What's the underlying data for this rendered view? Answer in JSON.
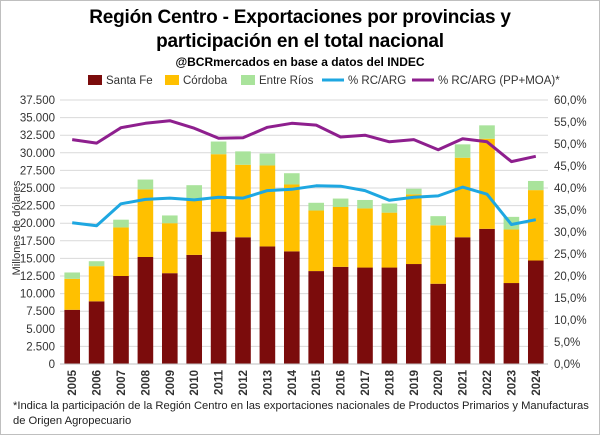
{
  "chart_data": {
    "type": "bar",
    "title_line1": "Región Centro - Exportaciones por provincias y",
    "title_line2": "participación en el total nacional",
    "subtitle": "@BCRmercados en base a datos del INDEC",
    "ylabel": "Millones de dólares",
    "categories": [
      "2005",
      "2006",
      "2007",
      "2008",
      "2009",
      "2010",
      "2011",
      "2012",
      "2013",
      "2014",
      "2015",
      "2016",
      "2017",
      "2018",
      "2019",
      "2020",
      "2021",
      "2022",
      "2023",
      "2024"
    ],
    "series": [
      {
        "name": "Santa Fe",
        "kind": "bar",
        "color": "#7b0c0c",
        "values": [
          7700,
          8900,
          12500,
          15200,
          12900,
          15500,
          18800,
          18000,
          16700,
          16000,
          13200,
          13800,
          13700,
          13700,
          14200,
          11400,
          18000,
          19200,
          11500,
          14700
        ]
      },
      {
        "name": "Córdoba",
        "kind": "bar",
        "color": "#ffc000",
        "values": [
          4400,
          5000,
          6900,
          9600,
          7100,
          7900,
          11000,
          10300,
          11500,
          9500,
          8600,
          8500,
          8400,
          7800,
          9900,
          8300,
          11300,
          12800,
          7600,
          10000
        ]
      },
      {
        "name": "Entre Ríos",
        "kind": "bar",
        "color": "#a9e39b",
        "values": [
          900,
          700,
          1100,
          1400,
          1100,
          2000,
          1800,
          1900,
          1700,
          1600,
          1100,
          1200,
          1200,
          1300,
          800,
          1300,
          1900,
          1900,
          1800,
          1300
        ]
      },
      {
        "name": "% RC/ARG",
        "kind": "line",
        "axis": "right",
        "color": "#1ea7e1",
        "values": [
          0.321,
          0.314,
          0.364,
          0.374,
          0.377,
          0.373,
          0.379,
          0.377,
          0.394,
          0.397,
          0.405,
          0.404,
          0.394,
          0.372,
          0.379,
          0.382,
          0.402,
          0.386,
          0.317,
          0.328
        ]
      },
      {
        "name": "% RC/ARG (PP+MOA)*",
        "kind": "line",
        "axis": "right",
        "color": "#8e1f8e",
        "values": [
          0.51,
          0.502,
          0.537,
          0.547,
          0.553,
          0.536,
          0.513,
          0.514,
          0.538,
          0.547,
          0.543,
          0.516,
          0.52,
          0.505,
          0.51,
          0.487,
          0.512,
          0.505,
          0.46,
          0.472
        ]
      }
    ],
    "y_left": {
      "min": 0,
      "max": 37500,
      "step": 2500,
      "ticks": [
        "0",
        "2.500",
        "5.000",
        "7.500",
        "10.000",
        "12.500",
        "15.000",
        "17.500",
        "20.000",
        "22.500",
        "25.000",
        "27.500",
        "30.000",
        "32.500",
        "35.000",
        "37.500"
      ]
    },
    "y_right": {
      "min": 0,
      "max": 0.6,
      "step": 0.05,
      "ticks": [
        "0,0%",
        "5,0%",
        "10,0%",
        "15,0%",
        "20,0%",
        "25,0%",
        "30,0%",
        "35,0%",
        "40,0%",
        "45,0%",
        "50,0%",
        "55,0%",
        "60,0%"
      ]
    },
    "grid": true,
    "legend_position": "top",
    "footnote": "*Indica la participación de la Región Centro en las exportaciones nacionales de Productos Primarios y Manufacturas de Origen Agropecuario"
  }
}
